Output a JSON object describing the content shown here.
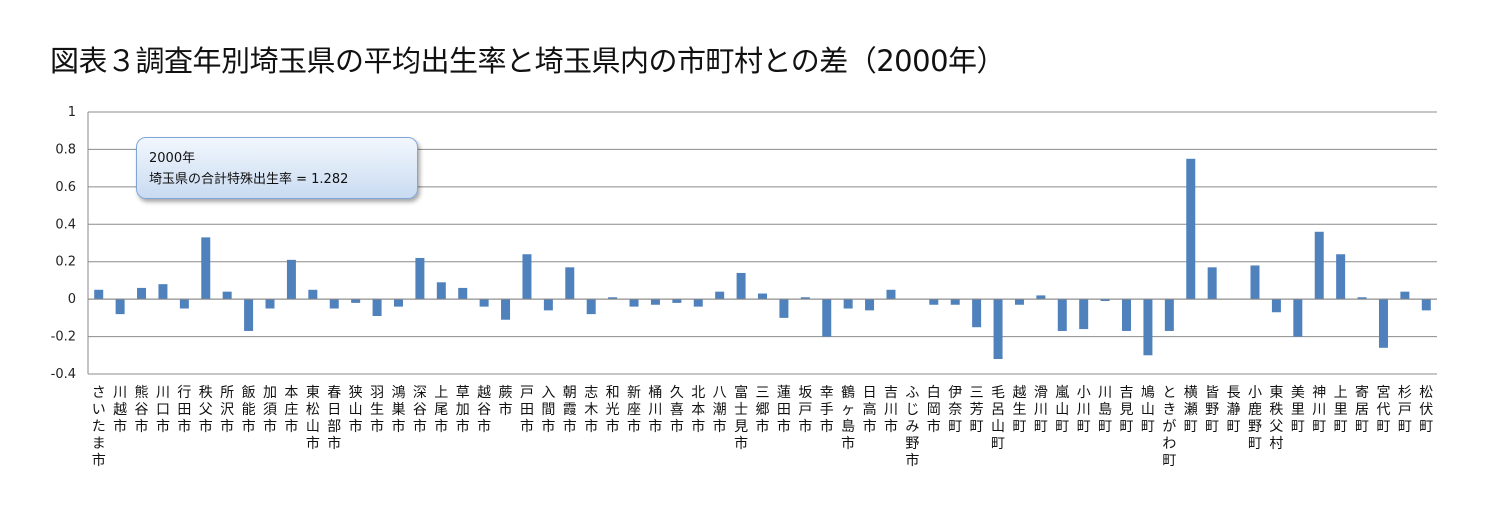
{
  "title": "図表３調査年別埼玉県の平均出生率と埼玉県内の市町村との差（2000年）",
  "annotation": {
    "line1": "2000年",
    "line2": "埼玉県の合計特殊出生率 = 1.282"
  },
  "chart_data": {
    "type": "bar",
    "title": "図表３調査年別埼玉県の平均出生率と埼玉県内の市町村との差（2000年）",
    "xlabel": "",
    "ylabel": "",
    "ylim": [
      -0.4,
      1
    ],
    "yticks": [
      "1",
      "0.8",
      "0.6",
      "0.4",
      "0.2",
      "0",
      "-0.2",
      "-0.4"
    ],
    "grid": true,
    "legend": "none",
    "bar_color": "#4f81bd",
    "categories": [
      "さいたま市",
      "川越市",
      "熊谷市",
      "川口市",
      "行田市",
      "秩父市",
      "所沢市",
      "飯能市",
      "加須市",
      "本庄市",
      "東松山市",
      "春日部市",
      "狭山市",
      "羽生市",
      "鴻巣市",
      "深谷市",
      "上尾市",
      "草加市",
      "越谷市",
      "蕨市",
      "戸田市",
      "入間市",
      "朝霞市",
      "志木市",
      "和光市",
      "新座市",
      "桶川市",
      "久喜市",
      "北本市",
      "八潮市",
      "富士見市",
      "三郷市",
      "蓮田市",
      "坂戸市",
      "幸手市",
      "鶴ヶ島市",
      "日高市",
      "吉川市",
      "ふじみ野市",
      "白岡市",
      "伊奈町",
      "三芳町",
      "毛呂山町",
      "越生町",
      "滑川町",
      "嵐山町",
      "小川町",
      "川島町",
      "吉見町",
      "鳩山町",
      "ときがわ町",
      "横瀬町",
      "皆野町",
      "長瀞町",
      "小鹿野町",
      "東秩父村",
      "美里町",
      "神川町",
      "上里町",
      "寄居町",
      "宮代町",
      "杉戸町",
      "松伏町"
    ],
    "values": [
      0.05,
      -0.08,
      0.06,
      0.08,
      -0.05,
      0.33,
      0.04,
      -0.17,
      -0.05,
      0.21,
      0.05,
      -0.05,
      -0.02,
      -0.09,
      -0.04,
      0.22,
      0.09,
      0.06,
      -0.04,
      -0.11,
      0.24,
      -0.06,
      0.17,
      -0.08,
      0.01,
      -0.04,
      -0.03,
      -0.02,
      -0.04,
      0.04,
      0.14,
      0.03,
      -0.1,
      0.01,
      -0.2,
      -0.05,
      -0.06,
      0.05,
      0.0,
      -0.03,
      -0.03,
      -0.15,
      -0.32,
      -0.03,
      0.02,
      -0.17,
      -0.16,
      -0.01,
      -0.17,
      -0.3,
      -0.17,
      0.75,
      0.17,
      0.0,
      0.18,
      -0.07,
      -0.2,
      0.36,
      0.24,
      0.01,
      -0.26,
      0.04,
      -0.06
    ]
  }
}
